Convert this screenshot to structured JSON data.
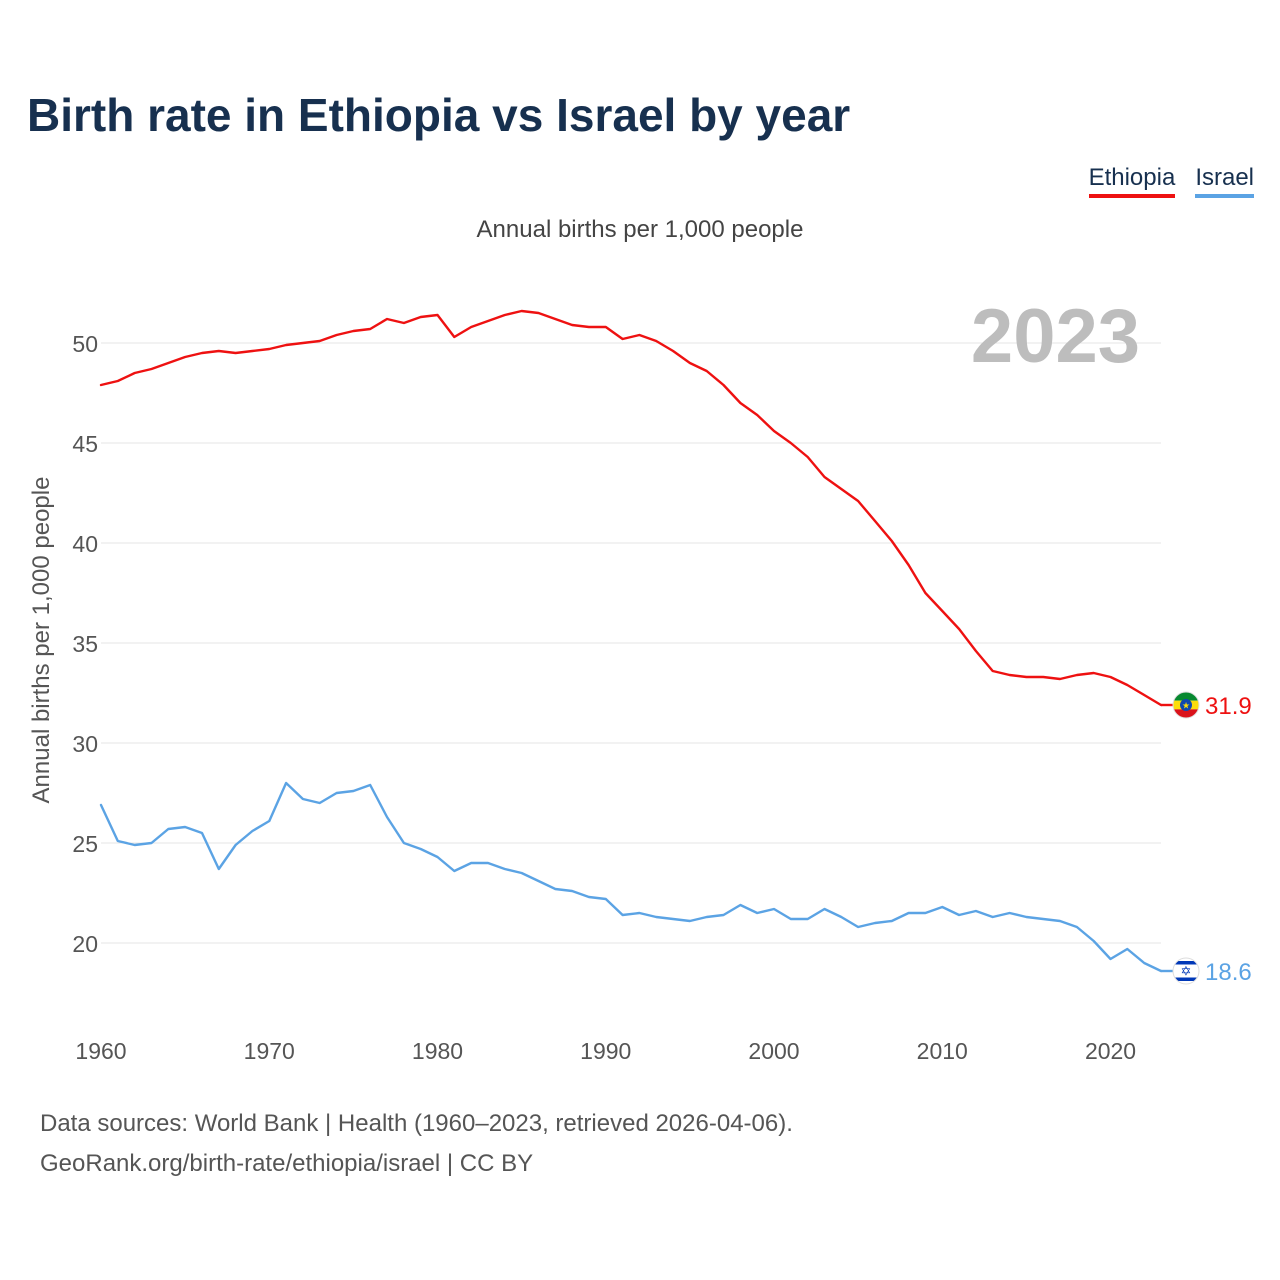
{
  "title": "Birth rate in Ethiopia vs Israel by year",
  "subtitle": "Annual births per 1,000 people",
  "year_watermark": "2023",
  "legend": [
    {
      "name": "Ethiopia",
      "color": "#ee1111"
    },
    {
      "name": "Israel",
      "color": "#5ba3e4"
    }
  ],
  "chart_data": {
    "type": "line",
    "title": "Birth rate in Ethiopia vs Israel by year",
    "xlabel": "",
    "ylabel": "Annual births per 1,000 people",
    "xlim": [
      1960,
      2023
    ],
    "ylim": [
      16.5,
      53
    ],
    "x_ticks": [
      1960,
      1970,
      1980,
      1990,
      2000,
      2010,
      2020
    ],
    "y_ticks": [
      20,
      25,
      30,
      35,
      40,
      45,
      50
    ],
    "grid": true,
    "x": [
      1960,
      1961,
      1962,
      1963,
      1964,
      1965,
      1966,
      1967,
      1968,
      1969,
      1970,
      1971,
      1972,
      1973,
      1974,
      1975,
      1976,
      1977,
      1978,
      1979,
      1980,
      1981,
      1982,
      1983,
      1984,
      1985,
      1986,
      1987,
      1988,
      1989,
      1990,
      1991,
      1992,
      1993,
      1994,
      1995,
      1996,
      1997,
      1998,
      1999,
      2000,
      2001,
      2002,
      2003,
      2004,
      2005,
      2006,
      2007,
      2008,
      2009,
      2010,
      2011,
      2012,
      2013,
      2014,
      2015,
      2016,
      2017,
      2018,
      2019,
      2020,
      2021,
      2022,
      2023
    ],
    "series": [
      {
        "name": "Ethiopia",
        "color": "#ee1111",
        "end_label": "31.9",
        "values": [
          47.9,
          48.1,
          48.5,
          48.7,
          49.0,
          49.3,
          49.5,
          49.6,
          49.5,
          49.6,
          49.7,
          49.9,
          50.0,
          50.1,
          50.4,
          50.6,
          50.7,
          51.2,
          51.0,
          51.3,
          51.4,
          50.3,
          50.8,
          51.1,
          51.4,
          51.6,
          51.5,
          51.2,
          50.9,
          50.8,
          50.8,
          50.2,
          50.4,
          50.1,
          49.6,
          49.0,
          48.6,
          47.9,
          47.0,
          46.4,
          45.6,
          45.0,
          44.3,
          43.3,
          42.7,
          42.1,
          41.1,
          40.1,
          38.9,
          37.5,
          36.6,
          35.7,
          34.6,
          33.6,
          33.4,
          33.3,
          33.3,
          33.2,
          33.4,
          33.5,
          33.3,
          32.9,
          32.4,
          31.9
        ]
      },
      {
        "name": "Israel",
        "color": "#5ba3e4",
        "end_label": "18.6",
        "values": [
          26.9,
          25.1,
          24.9,
          25.0,
          25.7,
          25.8,
          25.5,
          23.7,
          24.9,
          25.6,
          26.1,
          28.0,
          27.2,
          27.0,
          27.5,
          27.6,
          27.9,
          26.3,
          25.0,
          24.7,
          24.3,
          23.6,
          24.0,
          24.0,
          23.7,
          23.5,
          23.1,
          22.7,
          22.6,
          22.3,
          22.2,
          21.4,
          21.5,
          21.3,
          21.2,
          21.1,
          21.3,
          21.4,
          21.9,
          21.5,
          21.7,
          21.2,
          21.2,
          21.7,
          21.3,
          20.8,
          21.0,
          21.1,
          21.5,
          21.5,
          21.8,
          21.4,
          21.6,
          21.3,
          21.5,
          21.3,
          21.2,
          21.1,
          20.8,
          20.1,
          19.2,
          19.7,
          19.0,
          18.6
        ]
      }
    ]
  },
  "footer": {
    "line1": "Data sources: World Bank | Health (1960–2023, retrieved 2026-04-06).",
    "line2": "GeoRank.org/birth-rate/ethiopia/israel | CC BY"
  }
}
